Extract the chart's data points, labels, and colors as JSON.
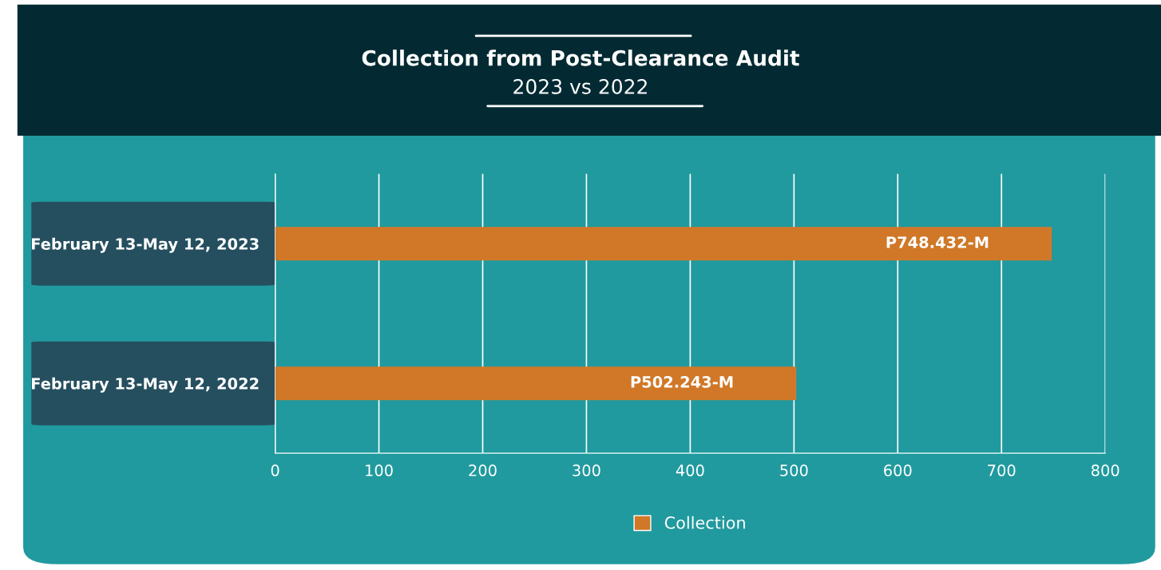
{
  "chart_data": {
    "type": "bar",
    "orientation": "horizontal",
    "title": "Collection from Post-Clearance Audit",
    "subtitle": "2023 vs 2022",
    "categories": [
      "February 13-May 12, 2023",
      "February 13-May 12, 2022"
    ],
    "series": [
      {
        "name": "Collection",
        "color": "#d07828",
        "values": [
          748.432,
          502.243
        ],
        "value_labels": [
          "P748.432-M",
          "P502.243-M"
        ]
      }
    ],
    "xlim": [
      0,
      800
    ],
    "xticks": [
      0,
      100,
      200,
      300,
      400,
      500,
      600,
      700,
      800
    ],
    "grid": "x",
    "legend": "bottom"
  }
}
